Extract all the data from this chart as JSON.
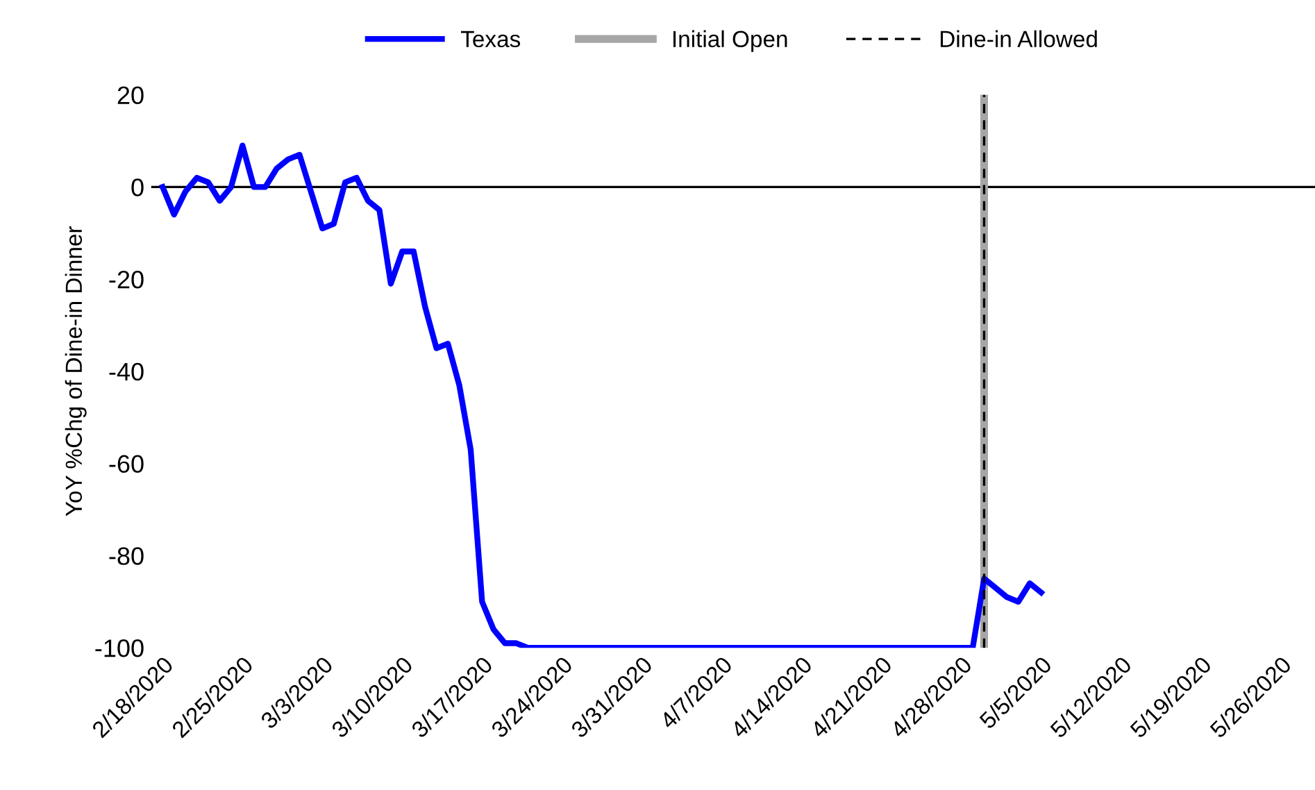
{
  "chart_data": {
    "type": "line",
    "ylabel": "YoY %Chg of Dine-in Dinner",
    "x": [
      "2020-02-18",
      "2020-02-19",
      "2020-02-20",
      "2020-02-21",
      "2020-02-22",
      "2020-02-23",
      "2020-02-24",
      "2020-02-25",
      "2020-02-26",
      "2020-02-27",
      "2020-02-28",
      "2020-02-29",
      "2020-03-01",
      "2020-03-02",
      "2020-03-03",
      "2020-03-04",
      "2020-03-05",
      "2020-03-06",
      "2020-03-07",
      "2020-03-08",
      "2020-03-09",
      "2020-03-10",
      "2020-03-11",
      "2020-03-12",
      "2020-03-13",
      "2020-03-14",
      "2020-03-15",
      "2020-03-16",
      "2020-03-17",
      "2020-03-18",
      "2020-03-19",
      "2020-03-20",
      "2020-03-21",
      "2020-03-22",
      "2020-03-23",
      "2020-03-24",
      "2020-03-25",
      "2020-03-26",
      "2020-03-27",
      "2020-03-28",
      "2020-03-29",
      "2020-03-30",
      "2020-03-31",
      "2020-04-01",
      "2020-04-02",
      "2020-04-03",
      "2020-04-04",
      "2020-04-05",
      "2020-04-06",
      "2020-04-07",
      "2020-04-08",
      "2020-04-09",
      "2020-04-10",
      "2020-04-11",
      "2020-04-12",
      "2020-04-13",
      "2020-04-14",
      "2020-04-15",
      "2020-04-16",
      "2020-04-17",
      "2020-04-18",
      "2020-04-19",
      "2020-04-20",
      "2020-04-21",
      "2020-04-22",
      "2020-04-23",
      "2020-04-24",
      "2020-04-25",
      "2020-04-26",
      "2020-04-27",
      "2020-04-28",
      "2020-04-29",
      "2020-04-30",
      "2020-05-01",
      "2020-05-02",
      "2020-05-03",
      "2020-05-04",
      "2020-05-05"
    ],
    "series": [
      {
        "name": "Texas",
        "color": "#0000ff",
        "values": [
          0,
          -6,
          -1,
          2,
          1,
          -3,
          0,
          9,
          0,
          0,
          4,
          6,
          7,
          -1,
          -9,
          -8,
          1,
          2,
          -3,
          -5,
          -21,
          -14,
          -14,
          -26,
          -35,
          -34,
          -43,
          -57,
          -90,
          -96,
          -99,
          -99,
          -100,
          -100,
          -100,
          -100,
          -100,
          -100,
          -100,
          -100,
          -100,
          -100,
          -100,
          -100,
          -100,
          -100,
          -100,
          -100,
          -100,
          -100,
          -100,
          -100,
          -100,
          -100,
          -100,
          -100,
          -100,
          -100,
          -100,
          -100,
          -100,
          -100,
          -100,
          -100,
          -100,
          -100,
          -100,
          -100,
          -100,
          -100,
          -100,
          -100,
          -85,
          -87,
          -89,
          -90,
          -86,
          -88
        ]
      }
    ],
    "xlim": [
      "2020-02-17",
      "2020-05-29"
    ],
    "xticks": [
      {
        "value": "2020-02-18",
        "label": "2/18/2020"
      },
      {
        "value": "2020-02-25",
        "label": "2/25/2020"
      },
      {
        "value": "2020-03-03",
        "label": "3/3/2020"
      },
      {
        "value": "2020-03-10",
        "label": "3/10/2020"
      },
      {
        "value": "2020-03-17",
        "label": "3/17/2020"
      },
      {
        "value": "2020-03-24",
        "label": "3/24/2020"
      },
      {
        "value": "2020-03-31",
        "label": "3/31/2020"
      },
      {
        "value": "2020-04-07",
        "label": "4/7/2020"
      },
      {
        "value": "2020-04-14",
        "label": "4/14/2020"
      },
      {
        "value": "2020-04-21",
        "label": "4/21/2020"
      },
      {
        "value": "2020-04-28",
        "label": "4/28/2020"
      },
      {
        "value": "2020-05-05",
        "label": "5/5/2020"
      },
      {
        "value": "2020-05-12",
        "label": "5/12/2020"
      },
      {
        "value": "2020-05-19",
        "label": "5/19/2020"
      },
      {
        "value": "2020-05-26",
        "label": "5/26/2020"
      }
    ],
    "ylim": [
      -100,
      20
    ],
    "yticks": [
      -100,
      -80,
      -60,
      -40,
      -20,
      0,
      20
    ],
    "ref_lines": [
      {
        "axis": "y",
        "value": 0,
        "color": "#000000",
        "line_style": "solid"
      },
      {
        "axis": "x",
        "value": "2020-04-30",
        "label": "Initial Open",
        "color": "#a6a6a6",
        "line_style": "solid"
      },
      {
        "axis": "x",
        "value": "2020-04-30",
        "label": "Dine-in Allowed",
        "color": "#000000",
        "line_style": "dashed"
      }
    ],
    "legend": "top",
    "grid": false,
    "marker": "none",
    "line_style": "solid"
  }
}
